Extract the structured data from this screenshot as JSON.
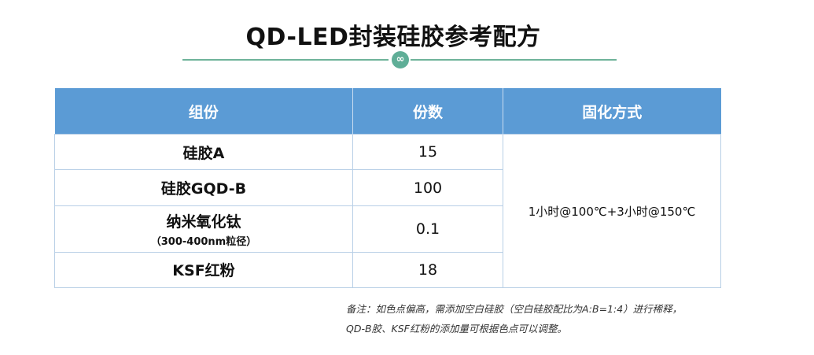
{
  "title": "QD-LED封装硅胶参考配方",
  "divider_icon": "∞",
  "table": {
    "headers": [
      "组份",
      "份数",
      "固化方式"
    ],
    "rows": [
      {
        "component": "硅胶A",
        "sub": "",
        "parts": "15"
      },
      {
        "component": "硅胶GQD-B",
        "sub": "",
        "parts": "100"
      },
      {
        "component": "纳米氧化钛",
        "sub": "（300-400nm粒径）",
        "parts": "0.1"
      },
      {
        "component": "KSF红粉",
        "sub": "",
        "parts": "18"
      }
    ],
    "curing": "1小时@100℃+3小时@150℃"
  },
  "note": {
    "line1": "备注：如色点偏高，需添加空白硅胶（空白硅胶配比为A:B=1:4）进行稀释，",
    "line2": "QD-B胶、KSF红粉的添加量可根据色点可以调整。"
  },
  "colors": {
    "header_bg": "#5b9bd5",
    "divider": "#6fb39a",
    "border": "#b8cfe6"
  }
}
